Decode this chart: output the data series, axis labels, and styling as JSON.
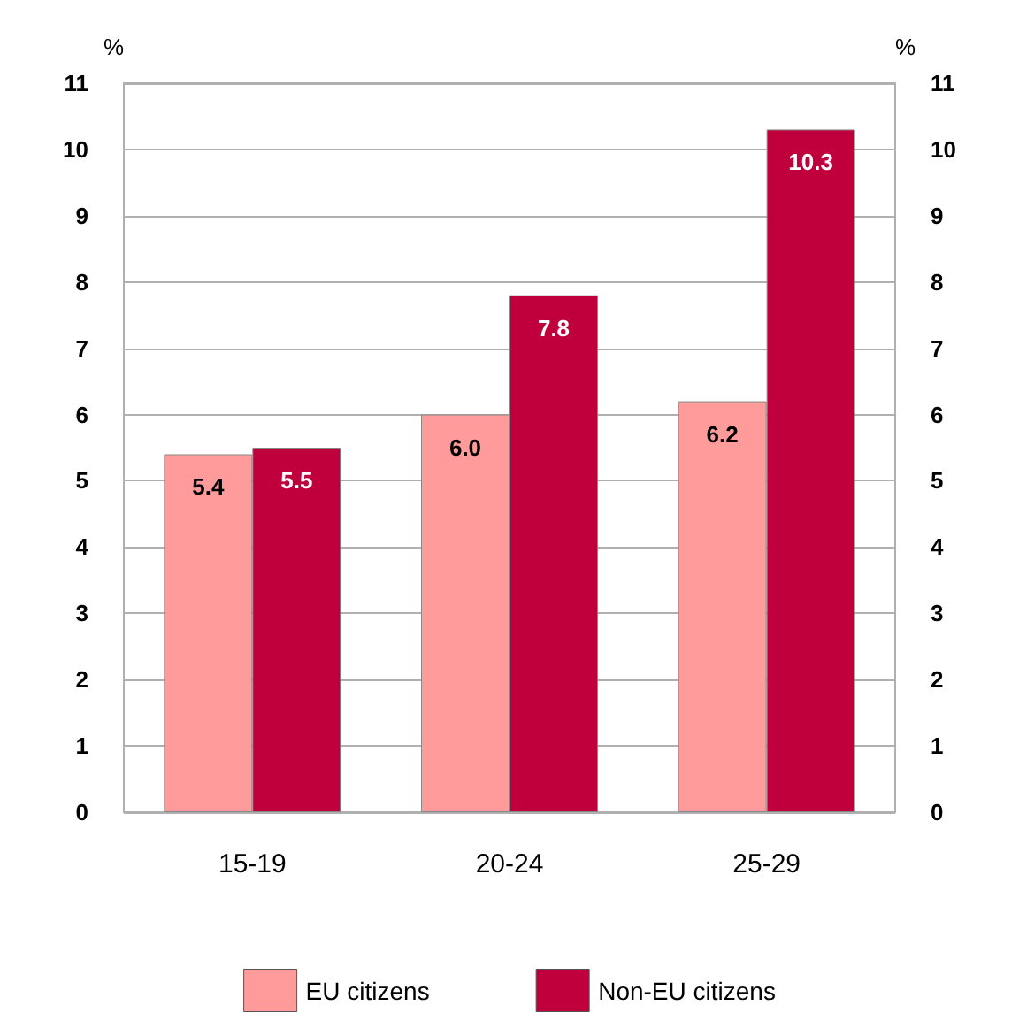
{
  "chart_data": {
    "type": "bar",
    "ylabel": "%",
    "y2label": "%",
    "categories": [
      "15-19",
      "20-24",
      "25-29"
    ],
    "series": [
      {
        "name": "EU citizens",
        "color": "#ff9b9b",
        "values": [
          5.4,
          6.0,
          6.2
        ],
        "value_labels": [
          "5.4",
          "6.0",
          "6.2"
        ]
      },
      {
        "name": "Non-EU citizens",
        "color": "#c0003c",
        "values": [
          5.5,
          7.8,
          10.3
        ],
        "value_labels": [
          "5.5",
          "7.8",
          "10.3"
        ]
      }
    ],
    "ylim": [
      0,
      11
    ],
    "yticks": [
      0,
      1,
      2,
      3,
      4,
      5,
      6,
      7,
      8,
      9,
      10,
      11
    ],
    "y2lim": [
      0,
      11
    ],
    "y2ticks": [
      0,
      1,
      2,
      3,
      4,
      5,
      6,
      7,
      8,
      9,
      10,
      11
    ],
    "grid": "y",
    "legend": "bottom"
  }
}
